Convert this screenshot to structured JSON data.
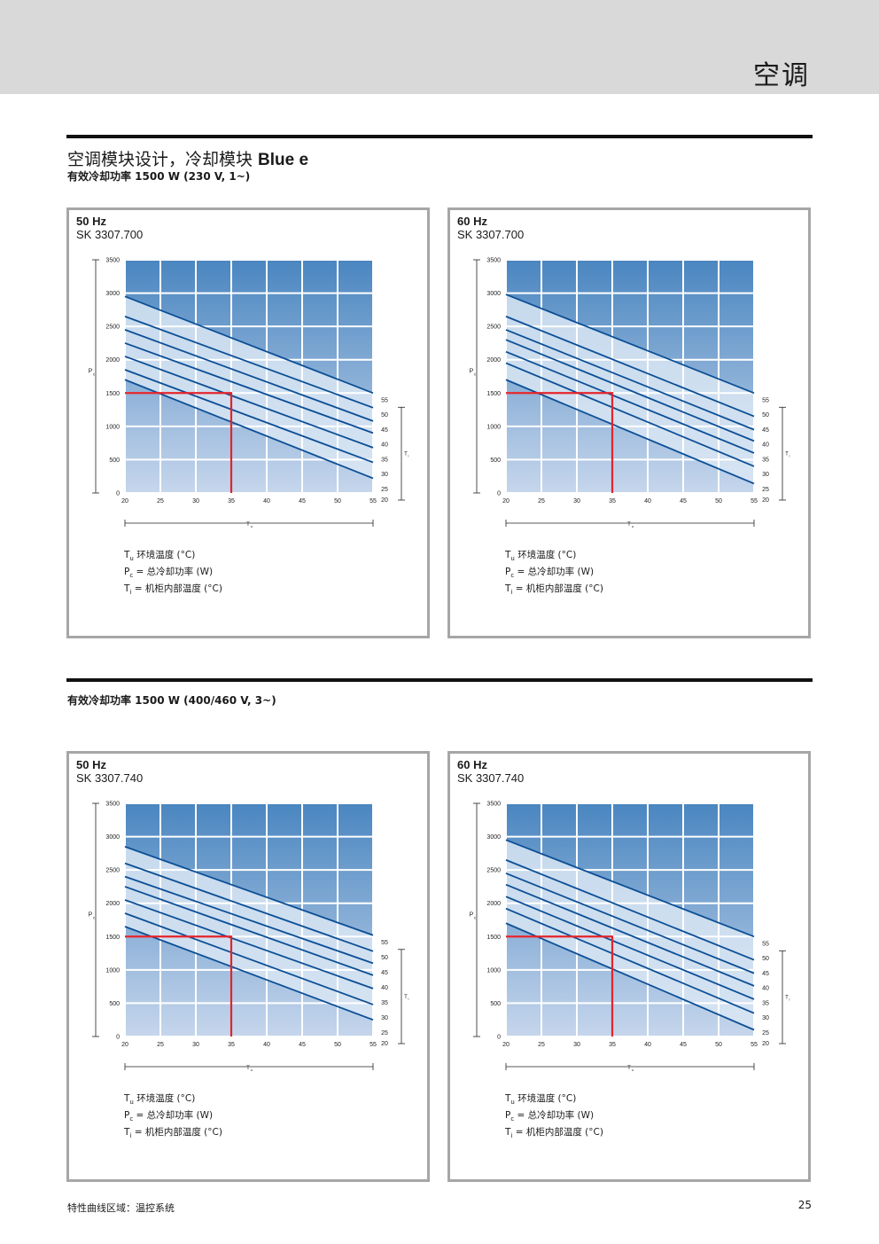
{
  "header": {
    "section_title": "空调"
  },
  "section1": {
    "title": "空调模块设计，冷却模块 ",
    "title_bold": "Blue e",
    "subtitle": "有效冷却功率 1500 W (230 V, 1~)"
  },
  "section2": {
    "subtitle": "有效冷却功率 1500 W (400/460 V, 3~)"
  },
  "legend": {
    "tu_sym": "T",
    "tu_sub": "u",
    "tu_text": " 环境温度 (°C)",
    "pc_sym": "P",
    "pc_sub": "c",
    "pc_text": " = 总冷却功率 (W)",
    "ti_sym": "T",
    "ti_sub": "i",
    "ti_text": "  = 机柜内部温度 (°C)"
  },
  "axis": {
    "x_symbol": "T",
    "x_sub": "u",
    "y_symbol": "P",
    "y_sub": "c",
    "ti_symbol": "T",
    "ti_sub": "i"
  },
  "colors": {
    "grad_top": "#4a86c0",
    "grad_bottom": "#c6d6ec",
    "band": "#d9e6f3",
    "curve": "#0c4f96",
    "marker": "#e3242b",
    "frame": "#a6a6a6"
  },
  "footer": {
    "left": "特性曲线区域：温控系统",
    "page": "25"
  },
  "chart_data": [
    {
      "type": "line",
      "title": "50 Hz",
      "model": "SK 3307.700",
      "x_ticks": [
        20,
        25,
        30,
        35,
        40,
        45,
        50,
        55
      ],
      "y_ticks": [
        0,
        500,
        1000,
        1500,
        2000,
        2500,
        3000,
        3500
      ],
      "xlim": [
        20,
        55
      ],
      "ylim": [
        0,
        3500
      ],
      "grid": true,
      "ti_legend_position": "right",
      "series": [
        {
          "name": "55",
          "x": [
            20,
            55
          ],
          "y": [
            2950,
            1500
          ]
        },
        {
          "name": "50",
          "x": [
            20,
            55
          ],
          "y": [
            2650,
            1280
          ]
        },
        {
          "name": "45",
          "x": [
            20,
            55
          ],
          "y": [
            2450,
            1080
          ]
        },
        {
          "name": "40",
          "x": [
            20,
            55
          ],
          "y": [
            2250,
            900
          ]
        },
        {
          "name": "35",
          "x": [
            20,
            55
          ],
          "y": [
            2050,
            680
          ]
        },
        {
          "name": "30",
          "x": [
            20,
            55
          ],
          "y": [
            1850,
            460
          ]
        },
        {
          "name": "25",
          "x": [
            20,
            55
          ],
          "y": [
            1700,
            220
          ]
        }
      ],
      "marker": {
        "x": 35,
        "y": 1500
      }
    },
    {
      "type": "line",
      "title": "60 Hz",
      "model": "SK 3307.700",
      "x_ticks": [
        20,
        25,
        30,
        35,
        40,
        45,
        50,
        55
      ],
      "y_ticks": [
        0,
        500,
        1000,
        1500,
        2000,
        2500,
        3000,
        3500
      ],
      "xlim": [
        20,
        55
      ],
      "ylim": [
        0,
        3500
      ],
      "grid": true,
      "ti_legend_position": "right",
      "series": [
        {
          "name": "55",
          "x": [
            20,
            55
          ],
          "y": [
            2980,
            1500
          ]
        },
        {
          "name": "50",
          "x": [
            20,
            55
          ],
          "y": [
            2650,
            1150
          ]
        },
        {
          "name": "45",
          "x": [
            20,
            55
          ],
          "y": [
            2450,
            950
          ]
        },
        {
          "name": "40",
          "x": [
            20,
            55
          ],
          "y": [
            2300,
            780
          ]
        },
        {
          "name": "35",
          "x": [
            20,
            55
          ],
          "y": [
            2120,
            600
          ]
        },
        {
          "name": "30",
          "x": [
            20,
            55
          ],
          "y": [
            1950,
            400
          ]
        },
        {
          "name": "25",
          "x": [
            20,
            55
          ],
          "y": [
            1700,
            140
          ]
        }
      ],
      "marker": {
        "x": 35,
        "y": 1500
      }
    },
    {
      "type": "line",
      "title": "50 Hz",
      "model": "SK 3307.740",
      "x_ticks": [
        20,
        25,
        30,
        35,
        40,
        45,
        50,
        55
      ],
      "y_ticks": [
        0,
        500,
        1000,
        1500,
        2000,
        2500,
        3000,
        3500
      ],
      "xlim": [
        20,
        55
      ],
      "ylim": [
        0,
        3500
      ],
      "grid": true,
      "ti_legend_position": "right",
      "series": [
        {
          "name": "55",
          "x": [
            20,
            55
          ],
          "y": [
            2850,
            1520
          ]
        },
        {
          "name": "50",
          "x": [
            20,
            55
          ],
          "y": [
            2600,
            1280
          ]
        },
        {
          "name": "45",
          "x": [
            20,
            55
          ],
          "y": [
            2400,
            1100
          ]
        },
        {
          "name": "40",
          "x": [
            20,
            55
          ],
          "y": [
            2250,
            920
          ]
        },
        {
          "name": "35",
          "x": [
            20,
            55
          ],
          "y": [
            2050,
            720
          ]
        },
        {
          "name": "30",
          "x": [
            20,
            55
          ],
          "y": [
            1850,
            480
          ]
        },
        {
          "name": "25",
          "x": [
            20,
            55
          ],
          "y": [
            1650,
            250
          ]
        }
      ],
      "marker": {
        "x": 35,
        "y": 1500
      }
    },
    {
      "type": "line",
      "title": "60 Hz",
      "model": "SK 3307.740",
      "x_ticks": [
        20,
        25,
        30,
        35,
        40,
        45,
        50,
        55
      ],
      "y_ticks": [
        0,
        500,
        1000,
        1500,
        2000,
        2500,
        3000,
        3500
      ],
      "xlim": [
        20,
        55
      ],
      "ylim": [
        0,
        3500
      ],
      "grid": true,
      "ti_legend_position": "right",
      "series": [
        {
          "name": "55",
          "x": [
            20,
            55
          ],
          "y": [
            2950,
            1500
          ]
        },
        {
          "name": "50",
          "x": [
            20,
            55
          ],
          "y": [
            2650,
            1150
          ]
        },
        {
          "name": "45",
          "x": [
            20,
            55
          ],
          "y": [
            2450,
            950
          ]
        },
        {
          "name": "40",
          "x": [
            20,
            55
          ],
          "y": [
            2280,
            760
          ]
        },
        {
          "name": "35",
          "x": [
            20,
            55
          ],
          "y": [
            2100,
            560
          ]
        },
        {
          "name": "30",
          "x": [
            20,
            55
          ],
          "y": [
            1920,
            350
          ]
        },
        {
          "name": "25",
          "x": [
            20,
            55
          ],
          "y": [
            1700,
            100
          ]
        }
      ],
      "marker": {
        "x": 35,
        "y": 1500
      }
    }
  ]
}
